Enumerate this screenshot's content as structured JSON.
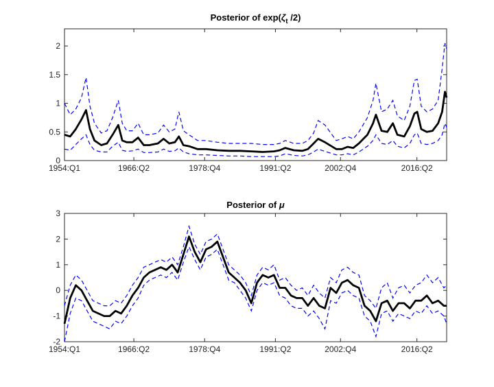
{
  "chart_data": [
    {
      "type": "line",
      "title": "Posterior of exp(ζt /2)",
      "title_parts": {
        "prefix": "Posterior of exp(",
        "greek": "ζ",
        "subscript": "t",
        "suffix": " /2)"
      },
      "x_tick_labels": [
        "1954:Q1",
        "1966:Q2",
        "1978:Q4",
        "1991:Q2",
        "2002:Q4",
        "2016:Q2"
      ],
      "x_tick_values": [
        1954.0,
        1966.25,
        1978.75,
        1991.25,
        2002.75,
        2016.25
      ],
      "xlim": [
        1954.0,
        2021.5
      ],
      "ylim": [
        0,
        2.3
      ],
      "y_ticks": [
        0,
        0.5,
        1,
        1.5,
        2
      ],
      "y_tick_labels": [
        "0",
        "0.5",
        "1",
        "1.5",
        "2"
      ],
      "series": [
        {
          "name": "upper band",
          "style": "dashed",
          "color": "#0000ff",
          "x": [
            1954.0,
            1955.0,
            1956.0,
            1957.0,
            1957.8,
            1958.5,
            1959.3,
            1960.5,
            1961.5,
            1962.5,
            1963.5,
            1964.2,
            1965.0,
            1966.0,
            1967.0,
            1968.0,
            1969.0,
            1970.5,
            1971.5,
            1972.5,
            1973.5,
            1974.2,
            1975.0,
            1976.0,
            1977.5,
            1979.0,
            1981.0,
            1983.0,
            1985.0,
            1987.0,
            1989.0,
            1991.0,
            1992.0,
            1993.0,
            1994.5,
            1996.0,
            1997.0,
            1998.0,
            1998.8,
            2000.0,
            2002.0,
            2003.0,
            2004.0,
            2005.0,
            2006.0,
            2007.5,
            2008.5,
            2009.0,
            2010.0,
            2011.0,
            2012.0,
            2012.8,
            2014.0,
            2015.0,
            2015.8,
            2016.3,
            2017.0,
            2018.0,
            2019.0,
            2020.0,
            2020.7,
            2021.2,
            2021.5
          ],
          "values": [
            1.0,
            0.8,
            0.9,
            1.1,
            1.45,
            0.95,
            0.65,
            0.48,
            0.52,
            0.75,
            1.05,
            0.65,
            0.52,
            0.52,
            0.65,
            0.45,
            0.45,
            0.48,
            0.62,
            0.5,
            0.55,
            0.85,
            0.52,
            0.45,
            0.35,
            0.35,
            0.32,
            0.3,
            0.3,
            0.3,
            0.28,
            0.28,
            0.3,
            0.35,
            0.3,
            0.3,
            0.35,
            0.48,
            0.7,
            0.62,
            0.35,
            0.38,
            0.42,
            0.38,
            0.5,
            0.75,
            1.05,
            1.35,
            0.85,
            0.9,
            1.05,
            0.78,
            0.7,
            0.95,
            1.4,
            1.42,
            0.95,
            0.85,
            0.9,
            1.05,
            1.6,
            2.05,
            1.95
          ]
        },
        {
          "name": "median",
          "style": "solid",
          "color": "#000000",
          "x": [
            1954.0,
            1955.0,
            1956.0,
            1957.0,
            1957.8,
            1958.5,
            1959.3,
            1960.5,
            1961.5,
            1962.5,
            1963.5,
            1964.2,
            1965.0,
            1966.0,
            1967.0,
            1968.0,
            1969.0,
            1970.5,
            1971.5,
            1972.5,
            1973.5,
            1974.2,
            1975.0,
            1976.0,
            1977.5,
            1979.0,
            1981.0,
            1983.0,
            1985.0,
            1987.0,
            1989.0,
            1991.0,
            1992.0,
            1993.0,
            1994.5,
            1996.0,
            1997.0,
            1998.0,
            1998.8,
            2000.0,
            2002.0,
            2003.0,
            2004.0,
            2005.0,
            2006.0,
            2007.5,
            2008.5,
            2009.0,
            2010.0,
            2011.0,
            2012.0,
            2012.8,
            2014.0,
            2015.0,
            2015.8,
            2016.3,
            2017.0,
            2018.0,
            2019.0,
            2020.0,
            2020.7,
            2021.2,
            2021.5
          ],
          "values": [
            0.45,
            0.42,
            0.55,
            0.72,
            0.88,
            0.55,
            0.35,
            0.27,
            0.3,
            0.45,
            0.62,
            0.35,
            0.32,
            0.32,
            0.4,
            0.27,
            0.27,
            0.3,
            0.38,
            0.3,
            0.32,
            0.42,
            0.27,
            0.25,
            0.2,
            0.2,
            0.18,
            0.17,
            0.17,
            0.16,
            0.15,
            0.16,
            0.18,
            0.22,
            0.18,
            0.17,
            0.2,
            0.3,
            0.38,
            0.32,
            0.2,
            0.2,
            0.24,
            0.22,
            0.3,
            0.45,
            0.65,
            0.8,
            0.52,
            0.5,
            0.65,
            0.45,
            0.42,
            0.6,
            0.82,
            0.85,
            0.55,
            0.5,
            0.52,
            0.65,
            0.85,
            1.2,
            1.1
          ]
        },
        {
          "name": "lower band",
          "style": "dashed",
          "color": "#0000ff",
          "x": [
            1954.0,
            1955.0,
            1956.0,
            1957.0,
            1957.8,
            1958.5,
            1959.3,
            1960.5,
            1961.5,
            1962.5,
            1963.5,
            1964.2,
            1965.0,
            1966.0,
            1967.0,
            1968.0,
            1969.0,
            1970.5,
            1971.5,
            1972.5,
            1973.5,
            1974.2,
            1975.0,
            1976.0,
            1977.5,
            1979.0,
            1981.0,
            1983.0,
            1985.0,
            1987.0,
            1989.0,
            1991.0,
            1992.0,
            1993.0,
            1994.5,
            1996.0,
            1997.0,
            1998.0,
            1998.8,
            2000.0,
            2002.0,
            2003.0,
            2004.0,
            2005.0,
            2006.0,
            2007.5,
            2008.5,
            2009.0,
            2010.0,
            2011.0,
            2012.0,
            2012.8,
            2014.0,
            2015.0,
            2015.8,
            2016.3,
            2017.0,
            2018.0,
            2019.0,
            2020.0,
            2020.7,
            2021.2,
            2021.5
          ],
          "values": [
            0.2,
            0.18,
            0.28,
            0.38,
            0.45,
            0.28,
            0.18,
            0.15,
            0.15,
            0.25,
            0.32,
            0.18,
            0.16,
            0.17,
            0.2,
            0.14,
            0.14,
            0.15,
            0.2,
            0.16,
            0.17,
            0.22,
            0.15,
            0.12,
            0.1,
            0.1,
            0.09,
            0.08,
            0.08,
            0.07,
            0.07,
            0.07,
            0.08,
            0.12,
            0.09,
            0.08,
            0.1,
            0.15,
            0.2,
            0.16,
            0.1,
            0.1,
            0.12,
            0.1,
            0.15,
            0.25,
            0.35,
            0.45,
            0.3,
            0.28,
            0.35,
            0.25,
            0.22,
            0.3,
            0.45,
            0.48,
            0.3,
            0.28,
            0.3,
            0.35,
            0.45,
            0.65,
            0.58
          ]
        }
      ]
    },
    {
      "type": "line",
      "title": "Posterior of μ",
      "title_parts": {
        "prefix": "Posterior of ",
        "greek": "μ",
        "subscript": "",
        "suffix": ""
      },
      "x_tick_labels": [
        "1954:Q1",
        "1966:Q2",
        "1978:Q4",
        "1991:Q2",
        "2002:Q4",
        "2016:Q2"
      ],
      "x_tick_values": [
        1954.0,
        1966.25,
        1978.75,
        1991.25,
        2002.75,
        2016.25
      ],
      "xlim": [
        1954.0,
        2021.5
      ],
      "ylim": [
        -2,
        3
      ],
      "y_ticks": [
        -2,
        -1,
        0,
        1,
        2,
        3
      ],
      "y_tick_labels": [
        "-2",
        "-1",
        "0",
        "1",
        "2",
        "3"
      ],
      "series": [
        {
          "name": "upper band",
          "style": "dashed",
          "color": "#0000ff",
          "x": [
            1954.0,
            1955.0,
            1956.0,
            1957.0,
            1958.0,
            1959.0,
            1960.0,
            1961.0,
            1962.0,
            1963.0,
            1964.0,
            1965.0,
            1966.0,
            1967.0,
            1968.0,
            1969.0,
            1970.0,
            1971.0,
            1972.0,
            1973.0,
            1974.0,
            1975.0,
            1976.0,
            1977.0,
            1978.0,
            1979.0,
            1980.0,
            1981.0,
            1982.0,
            1983.0,
            1984.0,
            1985.0,
            1986.0,
            1987.0,
            1988.0,
            1989.0,
            1990.0,
            1991.0,
            1992.0,
            1993.0,
            1994.0,
            1995.0,
            1996.0,
            1997.0,
            1998.0,
            1999.0,
            2000.0,
            2001.0,
            2002.0,
            2003.0,
            2004.0,
            2005.0,
            2006.0,
            2007.0,
            2008.0,
            2009.0,
            2010.0,
            2011.0,
            2012.0,
            2013.0,
            2014.0,
            2015.0,
            2016.0,
            2017.0,
            2018.0,
            2019.0,
            2020.0,
            2021.0,
            2021.5
          ],
          "values": [
            -0.6,
            0.2,
            0.6,
            0.4,
            0.0,
            -0.4,
            -0.5,
            -0.6,
            -0.6,
            -0.4,
            -0.5,
            -0.2,
            0.2,
            0.5,
            0.9,
            1.0,
            1.1,
            1.2,
            1.1,
            1.3,
            1.0,
            1.7,
            2.5,
            1.8,
            1.4,
            1.9,
            2.0,
            2.2,
            1.6,
            1.0,
            0.8,
            0.6,
            0.3,
            -0.2,
            0.6,
            0.9,
            0.8,
            1.0,
            0.4,
            0.5,
            0.2,
            0.0,
            0.1,
            -0.2,
            0.2,
            -0.1,
            -0.3,
            0.5,
            0.3,
            0.8,
            0.9,
            0.7,
            0.6,
            -0.2,
            -0.4,
            -0.7,
            0.1,
            0.3,
            -0.3,
            0.1,
            0.2,
            -0.1,
            0.2,
            0.3,
            0.6,
            0.3,
            0.5,
            0.1,
            0.2
          ]
        },
        {
          "name": "median",
          "style": "solid",
          "color": "#000000",
          "x": [
            1954.0,
            1955.0,
            1956.0,
            1957.0,
            1958.0,
            1959.0,
            1960.0,
            1961.0,
            1962.0,
            1963.0,
            1964.0,
            1965.0,
            1966.0,
            1967.0,
            1968.0,
            1969.0,
            1970.0,
            1971.0,
            1972.0,
            1973.0,
            1974.0,
            1975.0,
            1976.0,
            1977.0,
            1978.0,
            1979.0,
            1980.0,
            1981.0,
            1982.0,
            1983.0,
            1984.0,
            1985.0,
            1986.0,
            1987.0,
            1988.0,
            1989.0,
            1990.0,
            1991.0,
            1992.0,
            1993.0,
            1994.0,
            1995.0,
            1996.0,
            1997.0,
            1998.0,
            1999.0,
            2000.0,
            2001.0,
            2002.0,
            2003.0,
            2004.0,
            2005.0,
            2006.0,
            2007.0,
            2008.0,
            2009.0,
            2010.0,
            2011.0,
            2012.0,
            2013.0,
            2014.0,
            2015.0,
            2016.0,
            2017.0,
            2018.0,
            2019.0,
            2020.0,
            2021.0,
            2021.5
          ],
          "values": [
            -1.3,
            -0.3,
            0.2,
            0.0,
            -0.4,
            -0.8,
            -0.9,
            -1.0,
            -1.0,
            -0.8,
            -0.9,
            -0.6,
            -0.2,
            0.1,
            0.5,
            0.7,
            0.8,
            0.9,
            0.8,
            1.0,
            0.7,
            1.4,
            2.1,
            1.5,
            1.1,
            1.6,
            1.7,
            1.9,
            1.3,
            0.7,
            0.5,
            0.3,
            0.0,
            -0.5,
            0.3,
            0.6,
            0.5,
            0.6,
            0.1,
            0.1,
            -0.2,
            -0.3,
            -0.3,
            -0.6,
            -0.3,
            -0.6,
            -0.7,
            0.1,
            -0.1,
            0.3,
            0.4,
            0.2,
            0.1,
            -0.6,
            -0.8,
            -1.2,
            -0.5,
            -0.4,
            -0.8,
            -0.5,
            -0.5,
            -0.7,
            -0.4,
            -0.4,
            -0.2,
            -0.5,
            -0.4,
            -0.6,
            -0.6
          ]
        },
        {
          "name": "lower band",
          "style": "dashed",
          "color": "#0000ff",
          "x": [
            1954.0,
            1955.0,
            1956.0,
            1957.0,
            1958.0,
            1959.0,
            1960.0,
            1961.0,
            1962.0,
            1963.0,
            1964.0,
            1965.0,
            1966.0,
            1967.0,
            1968.0,
            1969.0,
            1970.0,
            1971.0,
            1972.0,
            1973.0,
            1974.0,
            1975.0,
            1976.0,
            1977.0,
            1978.0,
            1979.0,
            1980.0,
            1981.0,
            1982.0,
            1983.0,
            1984.0,
            1985.0,
            1986.0,
            1987.0,
            1988.0,
            1989.0,
            1990.0,
            1991.0,
            1992.0,
            1993.0,
            1994.0,
            1995.0,
            1996.0,
            1997.0,
            1998.0,
            1999.0,
            2000.0,
            2001.0,
            2002.0,
            2003.0,
            2004.0,
            2005.0,
            2006.0,
            2007.0,
            2008.0,
            2009.0,
            2010.0,
            2011.0,
            2012.0,
            2013.0,
            2014.0,
            2015.0,
            2016.0,
            2017.0,
            2018.0,
            2019.0,
            2020.0,
            2021.0,
            2021.5
          ],
          "values": [
            -2.0,
            -0.9,
            -0.3,
            -0.4,
            -0.8,
            -1.2,
            -1.3,
            -1.4,
            -1.5,
            -1.2,
            -1.3,
            -1.0,
            -0.6,
            -0.3,
            0.2,
            0.4,
            0.5,
            0.6,
            0.5,
            0.7,
            0.4,
            1.1,
            1.7,
            1.2,
            0.8,
            1.3,
            1.4,
            1.6,
            1.0,
            0.4,
            0.3,
            0.0,
            -0.3,
            -0.8,
            0.0,
            0.3,
            0.2,
            0.3,
            -0.2,
            -0.3,
            -0.6,
            -0.7,
            -0.7,
            -1.0,
            -0.8,
            -1.1,
            -1.5,
            -0.4,
            -0.5,
            -0.1,
            0.0,
            -0.2,
            -0.3,
            -1.0,
            -1.2,
            -1.8,
            -0.9,
            -0.8,
            -1.2,
            -0.9,
            -1.0,
            -1.1,
            -0.8,
            -0.9,
            -0.6,
            -0.9,
            -0.8,
            -1.0,
            -1.3
          ]
        }
      ]
    }
  ]
}
